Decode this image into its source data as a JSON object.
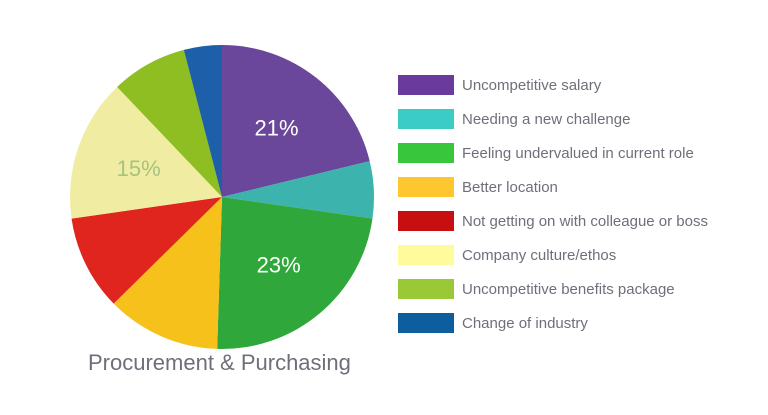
{
  "chart_data": {
    "type": "pie",
    "title": "Procurement & Purchasing",
    "categories": [
      "Uncompetitive salary",
      "Needing a new challenge",
      "Feeling undervalued in current role",
      "Better location",
      "Not getting on with colleague or boss",
      "Company culture/ethos",
      "Uncompetitive benefits package",
      "Change of industry"
    ],
    "values": [
      21,
      6,
      23,
      12,
      10,
      15,
      8,
      4
    ],
    "slice_labels": [
      "21%",
      "",
      "23%",
      "",
      "",
      "15%",
      "",
      ""
    ],
    "colors": [
      "#6a479b",
      "#3cb3ad",
      "#2fa73a",
      "#f7c11b",
      "#e0251f",
      "#f0eda3",
      "#8ebe22",
      "#1d5fa8"
    ],
    "legend_colors": [
      "#6a3a9c",
      "#3cccc8",
      "#37c63c",
      "#ffc72f",
      "#c70f12",
      "#fffb9c",
      "#99c936",
      "#0c5e9e"
    ],
    "legend_position": "right"
  }
}
